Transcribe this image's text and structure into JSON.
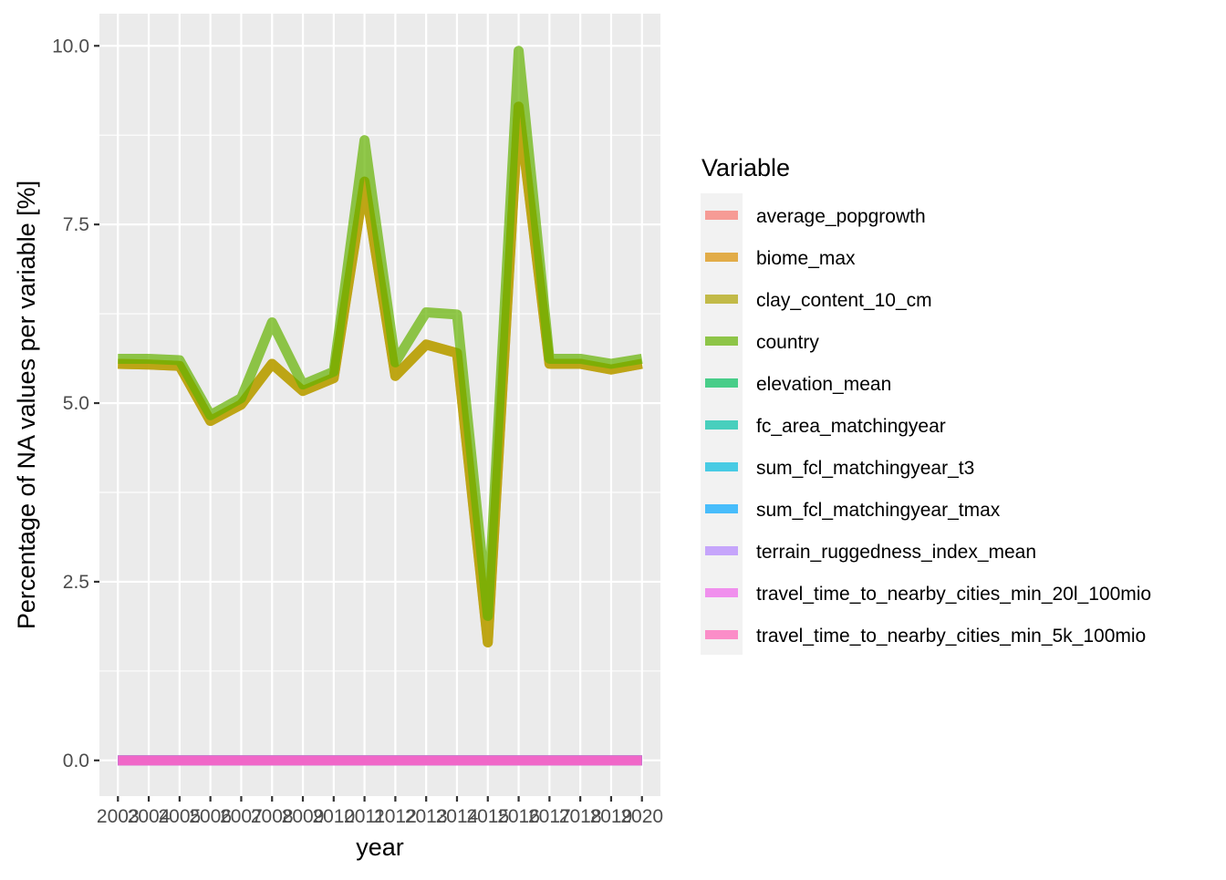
{
  "chart_data": {
    "type": "line",
    "title": "",
    "xlabel": "year",
    "ylabel": "Percentage of NA values per variable [%]",
    "x": [
      2003,
      2004,
      2005,
      2006,
      2007,
      2008,
      2009,
      2010,
      2011,
      2012,
      2013,
      2014,
      2015,
      2016,
      2017,
      2018,
      2019,
      2020
    ],
    "x_tick_labels": [
      "2003",
      "2004",
      "2005",
      "2006",
      "2007",
      "2008",
      "2009",
      "2010",
      "2011",
      "2012",
      "2013",
      "2014",
      "2015",
      "2016",
      "2017",
      "2018",
      "2019",
      "2020"
    ],
    "y_ticks": [
      0.0,
      2.5,
      5.0,
      7.5,
      10.0
    ],
    "y_tick_labels": [
      "0.0",
      "2.5",
      "5.0",
      "7.5",
      "10.0"
    ],
    "ylim": [
      -0.5,
      10.45
    ],
    "grid": true,
    "legend": {
      "title": "Variable",
      "position": "right"
    },
    "series": [
      {
        "name": "average_popgrowth",
        "color": "#F8766D",
        "values": [
          0,
          0,
          0,
          0,
          0,
          0,
          0,
          0,
          0,
          0,
          0,
          0,
          0,
          0,
          0,
          0,
          0,
          0
        ]
      },
      {
        "name": "biome_max",
        "color": "#DB8E00",
        "values": [
          5.55,
          5.54,
          5.52,
          4.75,
          4.98,
          5.55,
          5.17,
          5.35,
          8.1,
          5.38,
          5.82,
          5.7,
          1.65,
          9.15,
          5.55,
          5.55,
          5.47,
          5.55
        ]
      },
      {
        "name": "clay_content_10_cm",
        "color": "#AEA200",
        "values": [
          5.55,
          5.54,
          5.52,
          4.75,
          4.98,
          5.55,
          5.17,
          5.35,
          8.1,
          5.38,
          5.82,
          5.7,
          1.65,
          9.15,
          5.55,
          5.55,
          5.47,
          5.55
        ]
      },
      {
        "name": "country",
        "color": "#64B200",
        "values": [
          5.62,
          5.62,
          5.6,
          4.83,
          5.07,
          6.13,
          5.26,
          5.44,
          8.68,
          5.57,
          6.27,
          6.24,
          2.02,
          9.93,
          5.62,
          5.62,
          5.55,
          5.62
        ]
      },
      {
        "name": "elevation_mean",
        "color": "#00BD5C",
        "values": [
          0,
          0,
          0,
          0,
          0,
          0,
          0,
          0,
          0,
          0,
          0,
          0,
          0,
          0,
          0,
          0,
          0,
          0
        ]
      },
      {
        "name": "fc_area_matchingyear",
        "color": "#00C1A7",
        "values": [
          0,
          0,
          0,
          0,
          0,
          0,
          0,
          0,
          0,
          0,
          0,
          0,
          0,
          0,
          0,
          0,
          0,
          0
        ]
      },
      {
        "name": "sum_fcl_matchingyear_t3",
        "color": "#00BADE",
        "values": [
          0,
          0,
          0,
          0,
          0,
          0,
          0,
          0,
          0,
          0,
          0,
          0,
          0,
          0,
          0,
          0,
          0,
          0
        ]
      },
      {
        "name": "sum_fcl_matchingyear_tmax",
        "color": "#00A6FF",
        "values": [
          0,
          0,
          0,
          0,
          0,
          0,
          0,
          0,
          0,
          0,
          0,
          0,
          0,
          0,
          0,
          0,
          0,
          0
        ]
      },
      {
        "name": "terrain_ruggedness_index_mean",
        "color": "#B385FF",
        "values": [
          0,
          0,
          0,
          0,
          0,
          0,
          0,
          0,
          0,
          0,
          0,
          0,
          0,
          0,
          0,
          0,
          0,
          0
        ]
      },
      {
        "name": "travel_time_to_nearby_cities_min_20l_100mio",
        "color": "#EF67EB",
        "values": [
          0,
          0,
          0,
          0,
          0,
          0,
          0,
          0,
          0,
          0,
          0,
          0,
          0,
          0,
          0,
          0,
          0,
          0
        ]
      },
      {
        "name": "travel_time_to_nearby_cities_min_5k_100mio",
        "color": "#FF63B6",
        "values": [
          0,
          0,
          0,
          0,
          0,
          0,
          0,
          0,
          0,
          0,
          0,
          0,
          0,
          0,
          0,
          0,
          0,
          0
        ]
      }
    ]
  }
}
